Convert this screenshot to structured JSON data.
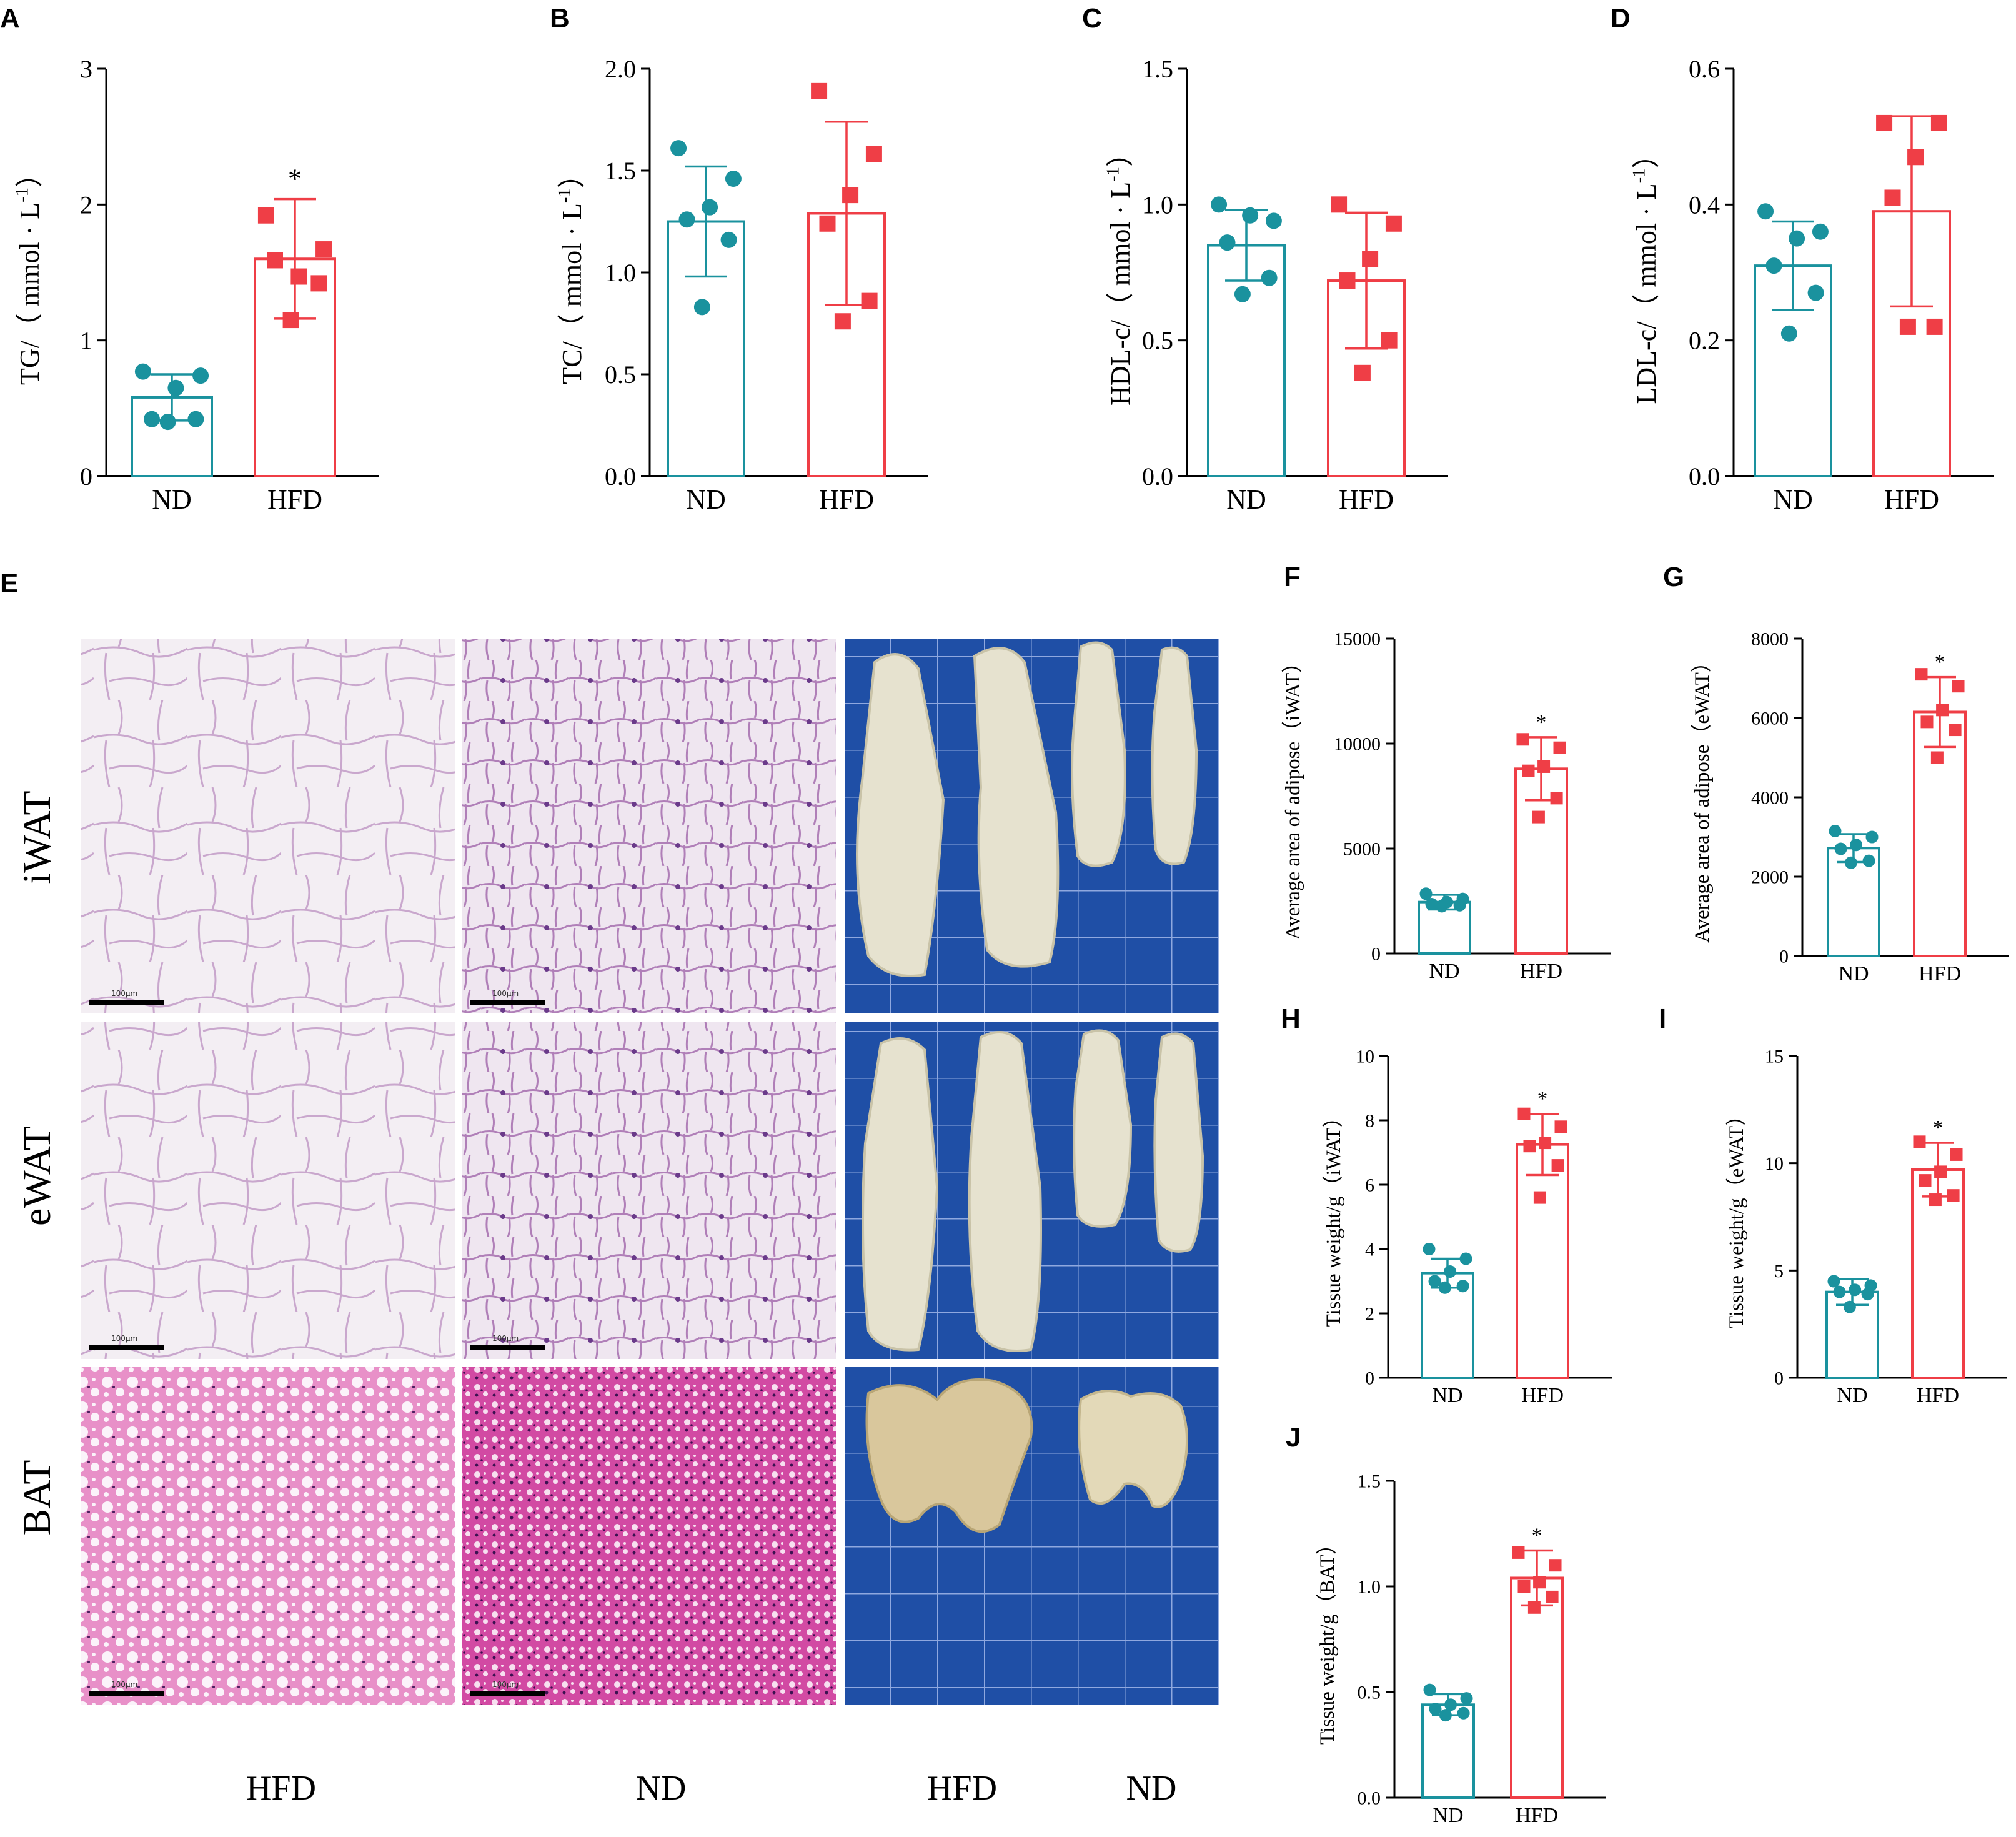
{
  "colors": {
    "nd": "#1a929e",
    "hfd": "#ef3e46",
    "axis": "#000000"
  },
  "chart_data": [
    {
      "panel": "A",
      "type": "bar",
      "ylabel": "TG/（ mmol · L-1）",
      "categories": [
        "ND",
        "HFD"
      ],
      "ylim": [
        0,
        3
      ],
      "yticks": [
        "0",
        "1",
        "2",
        "3"
      ],
      "means": [
        0.58,
        1.6
      ],
      "sd": [
        0.17,
        0.44
      ],
      "points": [
        [
          0.77,
          0.74,
          0.65,
          0.42,
          0.42,
          0.4
        ],
        [
          1.92,
          1.67,
          1.47,
          1.59,
          1.42,
          1.15
        ]
      ],
      "sig": [
        "",
        "*"
      ]
    },
    {
      "panel": "B",
      "type": "bar",
      "ylabel": "TC/（ mmol · L-1）",
      "categories": [
        "ND",
        "HFD"
      ],
      "ylim": [
        0,
        2.0
      ],
      "yticks": [
        "0.0",
        "0.5",
        "1.0",
        "1.5",
        "2.0"
      ],
      "means": [
        1.25,
        1.29
      ],
      "sd": [
        0.27,
        0.45
      ],
      "points": [
        [
          1.61,
          1.46,
          1.32,
          1.26,
          1.16,
          0.83
        ],
        [
          1.89,
          1.58,
          1.38,
          1.24,
          0.86,
          0.76
        ]
      ],
      "sig": [
        "",
        ""
      ]
    },
    {
      "panel": "C",
      "type": "bar",
      "ylabel": "HDL-c/（ mmol · L-1）",
      "categories": [
        "ND",
        "HFD"
      ],
      "ylim": [
        0,
        1.5
      ],
      "yticks": [
        "0.0",
        "0.5",
        "1.0",
        "1.5"
      ],
      "means": [
        0.85,
        0.72
      ],
      "sd": [
        0.13,
        0.25
      ],
      "points": [
        [
          1.0,
          0.94,
          0.96,
          0.86,
          0.73,
          0.67
        ],
        [
          1.0,
          0.93,
          0.8,
          0.72,
          0.5,
          0.38
        ]
      ],
      "sig": [
        "",
        ""
      ]
    },
    {
      "panel": "D",
      "type": "bar",
      "ylabel": "LDL-c/（ mmol · L-1）",
      "categories": [
        "ND",
        "HFD"
      ],
      "ylim": [
        0,
        0.6
      ],
      "yticks": [
        "0.0",
        "0.2",
        "0.4",
        "0.6"
      ],
      "means": [
        0.31,
        0.39
      ],
      "sd": [
        0.065,
        0.14
      ],
      "points": [
        [
          0.39,
          0.36,
          0.35,
          0.31,
          0.27,
          0.21
        ],
        [
          0.52,
          0.52,
          0.47,
          0.41,
          0.22,
          0.22
        ]
      ],
      "sig": [
        "",
        ""
      ]
    },
    {
      "panel": "F",
      "type": "bar",
      "ylabel": "Average area of adipose（iWAT）",
      "categories": [
        "ND",
        "HFD"
      ],
      "ylim": [
        0,
        15000
      ],
      "yticks": [
        "0",
        "5000",
        "10000",
        "15000"
      ],
      "means": [
        2450,
        8800
      ],
      "sd": [
        350,
        1500
      ],
      "points": [
        [
          2850,
          2600,
          2450,
          2350,
          2300,
          2250
        ],
        [
          10200,
          9800,
          8900,
          8700,
          7400,
          6500
        ]
      ],
      "sig": [
        "",
        "*"
      ]
    },
    {
      "panel": "G",
      "type": "bar",
      "ylabel": "Average area of adipose（eWAT）",
      "categories": [
        "ND",
        "HFD"
      ],
      "ylim": [
        0,
        8000
      ],
      "yticks": [
        "0",
        "2000",
        "4000",
        "6000",
        "8000"
      ],
      "means": [
        2720,
        6150
      ],
      "sd": [
        350,
        880
      ],
      "points": [
        [
          3150,
          3000,
          2800,
          2700,
          2400,
          2350
        ],
        [
          7100,
          6800,
          6200,
          5900,
          5700,
          5000
        ]
      ],
      "sig": [
        "",
        "*"
      ]
    },
    {
      "panel": "H",
      "type": "bar",
      "ylabel": "Tissue weight/g（iWAT）",
      "categories": [
        "ND",
        "HFD"
      ],
      "ylim": [
        0,
        10
      ],
      "yticks": [
        "0",
        "2",
        "4",
        "6",
        "8",
        "10"
      ],
      "means": [
        3.25,
        7.25
      ],
      "sd": [
        0.45,
        0.95
      ],
      "points": [
        [
          4.0,
          3.7,
          3.3,
          3.0,
          2.85,
          2.8
        ],
        [
          8.2,
          7.8,
          7.3,
          7.2,
          6.6,
          5.6
        ]
      ],
      "sig": [
        "",
        "*"
      ]
    },
    {
      "panel": "I",
      "type": "bar",
      "ylabel": "Tissue weight/g（eWAT）",
      "categories": [
        "ND",
        "HFD"
      ],
      "ylim": [
        0,
        15
      ],
      "yticks": [
        "0",
        "5",
        "10",
        "15"
      ],
      "means": [
        4.0,
        9.7
      ],
      "sd": [
        0.6,
        1.25
      ],
      "points": [
        [
          4.5,
          4.3,
          4.1,
          4.0,
          3.9,
          3.3
        ],
        [
          11.0,
          10.4,
          9.6,
          9.2,
          8.5,
          8.3
        ]
      ],
      "sig": [
        "",
        "*"
      ]
    },
    {
      "panel": "J",
      "type": "bar",
      "ylabel": "Tissue weight/g（BAT）",
      "categories": [
        "ND",
        "HFD"
      ],
      "ylim": [
        0,
        1.5
      ],
      "yticks": [
        "0.0",
        "0.5",
        "1.0",
        "1.5"
      ],
      "means": [
        0.44,
        1.04
      ],
      "sd": [
        0.05,
        0.13
      ],
      "points": [
        [
          0.51,
          0.47,
          0.44,
          0.42,
          0.4,
          0.39
        ],
        [
          1.16,
          1.1,
          1.02,
          1.0,
          0.95,
          0.9
        ]
      ],
      "sig": [
        "",
        "*"
      ]
    }
  ],
  "figure_e": {
    "panel": "E",
    "row_labels": [
      "iWAT",
      "eWAT",
      "BAT"
    ],
    "column_labels": [
      "HFD",
      "ND",
      "HFD",
      "ND"
    ],
    "scale_bar_text": "100μm"
  }
}
